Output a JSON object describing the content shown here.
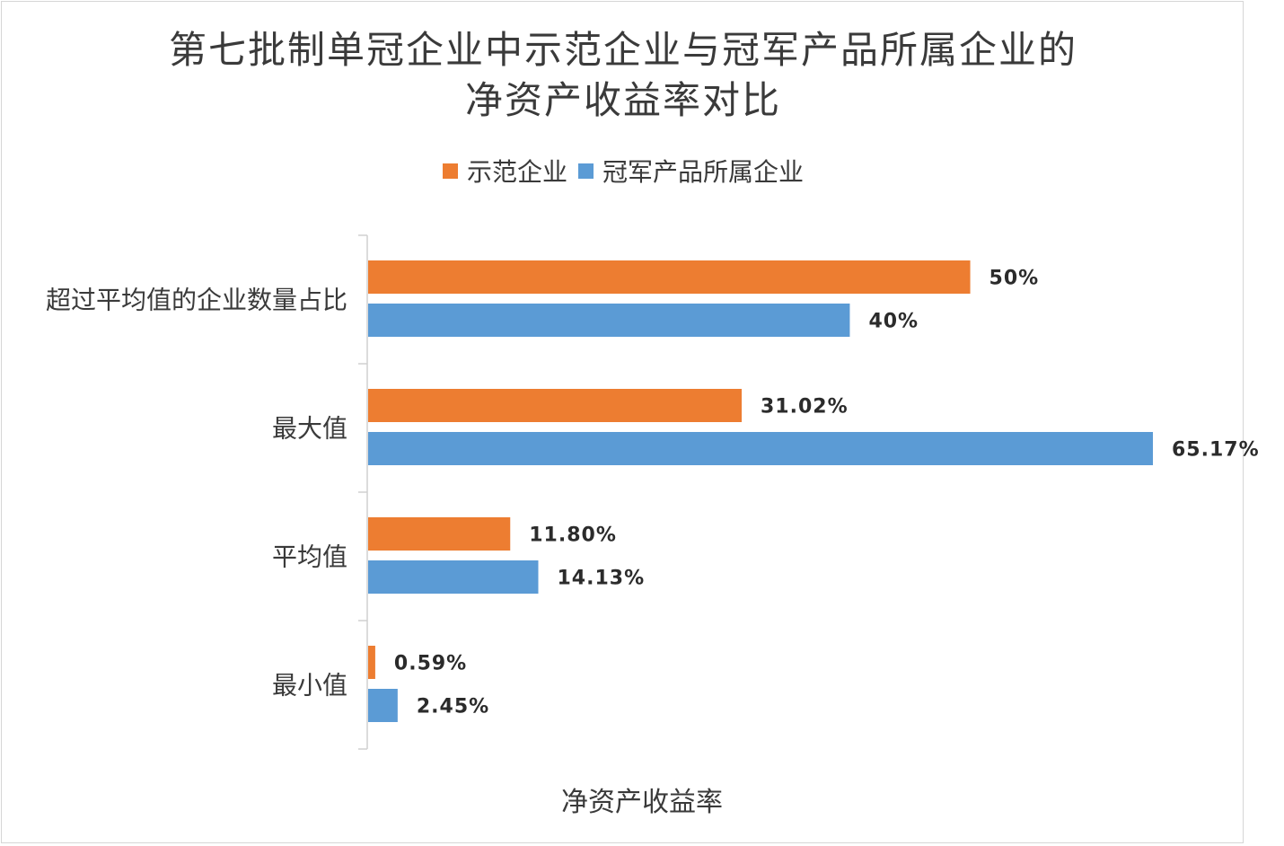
{
  "colors": {
    "series_1": "#ED7D31",
    "series_2": "#5B9BD5",
    "axis": "#d0d0d0",
    "text": "#3a3a3a"
  },
  "chart_data": {
    "type": "bar",
    "orientation": "horizontal",
    "title": [
      "第七批制单冠企业中示范企业与冠军产品所属企业的",
      "净资产收益率对比"
    ],
    "xlabel": "净资产收益率",
    "ylabel": "",
    "categories": [
      "超过平均值的企业数量占比",
      "最大值",
      "平均值",
      "最小值"
    ],
    "series": [
      {
        "name": "示范企业",
        "values": [
          50,
          31.02,
          11.8,
          0.59
        ],
        "labels": [
          "50%",
          "31.02%",
          "11.80%",
          "0.59%"
        ]
      },
      {
        "name": "冠军产品所属企业",
        "values": [
          40,
          65.17,
          14.13,
          2.45
        ],
        "labels": [
          "40%",
          "65.17%",
          "14.13%",
          "2.45%"
        ]
      }
    ],
    "xlim": [
      0,
      65.17
    ],
    "grid": false,
    "legend_position": "top"
  }
}
